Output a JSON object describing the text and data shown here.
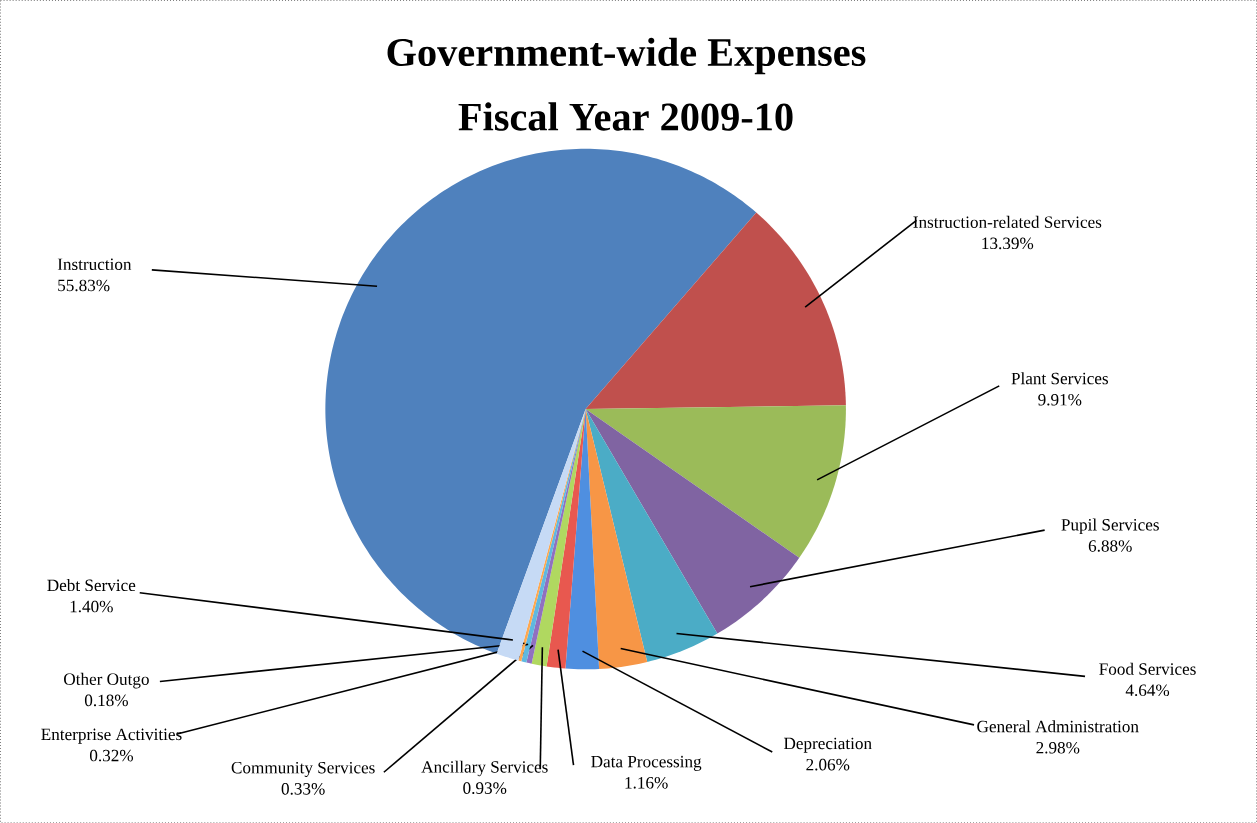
{
  "chart_data": {
    "type": "pie",
    "title": "Government-wide Expenses",
    "subtitle": "Fiscal Year 2009-10",
    "categories": [
      "Instruction",
      "Instruction-related Services",
      "Plant Services",
      "Pupil Services",
      "Food Services",
      "General Administration",
      "Depreciation",
      "Data Processing",
      "Ancillary Services",
      "Community Services",
      "Enterprise Activities",
      "Other Outgo",
      "Debt Service"
    ],
    "values": [
      55.83,
      13.39,
      9.91,
      6.88,
      4.64,
      2.98,
      2.06,
      1.16,
      0.93,
      0.33,
      0.32,
      0.18,
      1.4
    ],
    "value_labels": [
      "55.83%",
      "13.39%",
      "9.91%",
      "6.88%",
      "4.64%",
      "2.98%",
      "2.06%",
      "1.16%",
      "0.93%",
      "0.33%",
      "0.32%",
      "0.18%",
      "1.40%"
    ],
    "colors": [
      "#4f81bd",
      "#c0504d",
      "#9bbb59",
      "#8064a2",
      "#4bacc6",
      "#f79646",
      "#4f8fe0",
      "#e8584f",
      "#b0d860",
      "#9070c0",
      "#5fb8e0",
      "#ffa850",
      "#c6daf5"
    ]
  }
}
